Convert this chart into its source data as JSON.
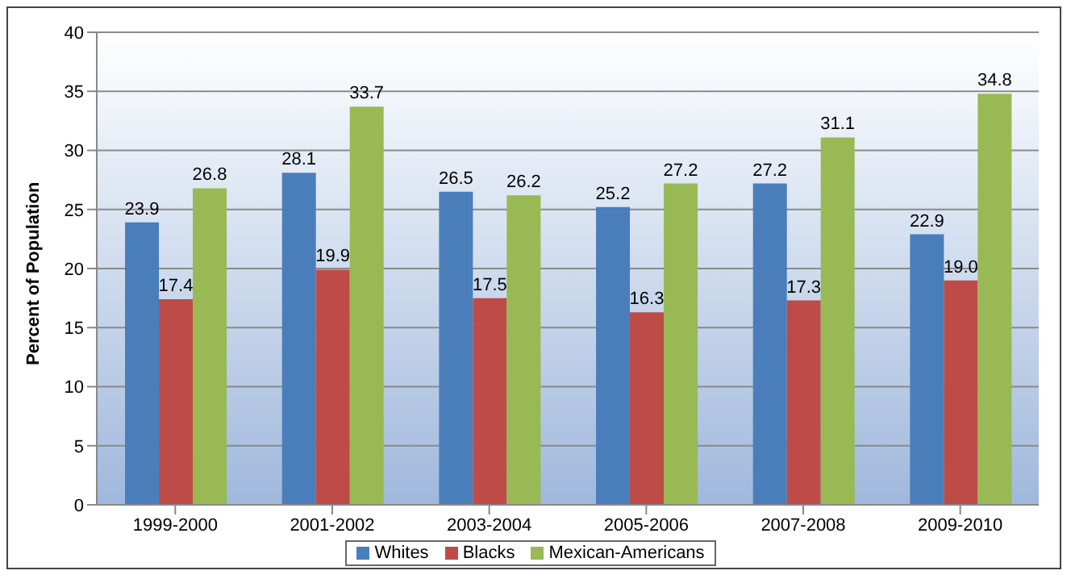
{
  "chart_data": {
    "type": "bar",
    "ylabel": "Percent of Population",
    "categories": [
      "1999-2000",
      "2001-2002",
      "2003-2004",
      "2005-2006",
      "2007-2008",
      "2009-2010"
    ],
    "series": [
      {
        "name": "Whites",
        "color": "#4a7ebb",
        "values": [
          23.9,
          28.1,
          26.5,
          25.2,
          27.2,
          22.9
        ],
        "value_labels": [
          "23.9",
          "28.1",
          "26.5",
          "25.2",
          "27.2",
          "22.9"
        ]
      },
      {
        "name": "Blacks",
        "color": "#be4b48",
        "values": [
          17.4,
          19.9,
          17.5,
          16.3,
          17.3,
          19.0
        ],
        "value_labels": [
          "17.4",
          "19.9",
          "17.5",
          "16.3",
          "17.3",
          "19.0"
        ]
      },
      {
        "name": "Mexican-Americans",
        "color": "#98b954",
        "values": [
          26.8,
          33.7,
          26.2,
          27.2,
          31.1,
          34.8
        ],
        "value_labels": [
          "26.8",
          "33.7",
          "26.2",
          "27.2",
          "31.1",
          "34.8"
        ]
      }
    ],
    "ylim": [
      0,
      40
    ],
    "yticks": [
      0,
      5,
      10,
      15,
      20,
      25,
      30,
      35,
      40
    ],
    "grid": "y",
    "legend": "bottom"
  }
}
